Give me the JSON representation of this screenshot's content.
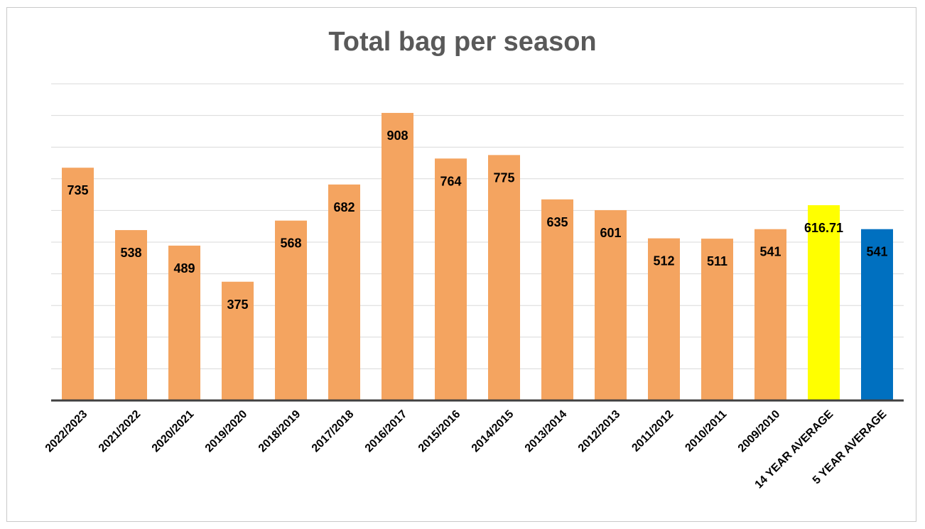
{
  "chart_data": {
    "type": "bar",
    "title": "Total bag per season",
    "categories": [
      "2022/2023",
      "2021/2022",
      "2020/2021",
      "2019/2020",
      "2018/2019",
      "2017/2018",
      "2016/2017",
      "2015/2016",
      "2014/2015",
      "2013/2014",
      "2012/2013",
      "2011/2012",
      "2010/2011",
      "2009/2010",
      "14 YEAR AVERAGE",
      "5 YEAR AVERAGE"
    ],
    "values": [
      735,
      538,
      489,
      375,
      568,
      682,
      908,
      764,
      775,
      635,
      601,
      512,
      511,
      541,
      616.71,
      541
    ],
    "data_labels": [
      "735",
      "538",
      "489",
      "375",
      "568",
      "682",
      "908",
      "764",
      "775",
      "635",
      "601",
      "512",
      "511",
      "541",
      "616.71",
      "541"
    ],
    "colors": [
      "#f4a460",
      "#f4a460",
      "#f4a460",
      "#f4a460",
      "#f4a460",
      "#f4a460",
      "#f4a460",
      "#f4a460",
      "#f4a460",
      "#f4a460",
      "#f4a460",
      "#f4a460",
      "#f4a460",
      "#f4a460",
      "#ffff00",
      "#0070c0"
    ],
    "ylim": [
      0,
      1000
    ],
    "gridlines": true,
    "y_tick_labels_shown": false,
    "legend": "none",
    "xlabel": "",
    "ylabel": ""
  }
}
